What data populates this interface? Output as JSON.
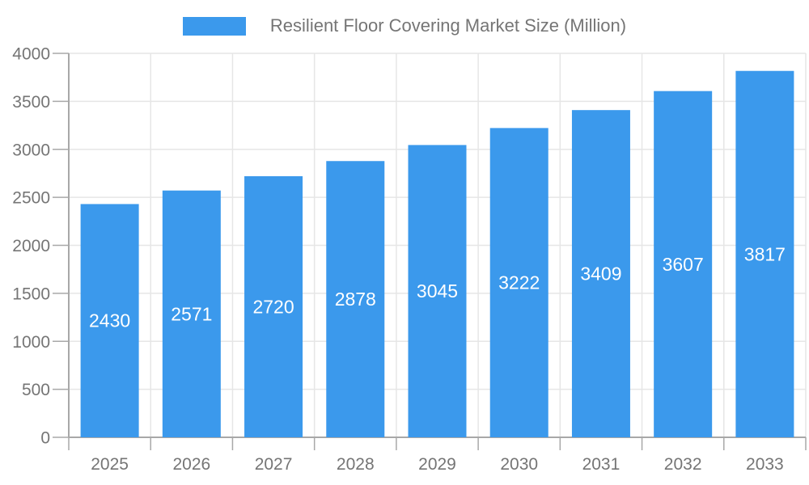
{
  "chart_data": {
    "type": "bar",
    "title": "Resilient Floor Covering Market Size (Million)",
    "categories": [
      "2025",
      "2026",
      "2027",
      "2028",
      "2029",
      "2030",
      "2031",
      "2032",
      "2033"
    ],
    "values": [
      2430,
      2571,
      2720,
      2878,
      3045,
      3222,
      3409,
      3607,
      3817
    ],
    "xlabel": "",
    "ylabel": "",
    "ylim": [
      0,
      4000
    ],
    "yticks": [
      0,
      500,
      1000,
      1500,
      2000,
      2500,
      3000,
      3500,
      4000
    ],
    "grid": true,
    "legend_position": "top-center",
    "bar_label_position": "inside-center",
    "colors": {
      "bar": "#3b99ec",
      "bar_label": "#ffffff",
      "axis_text": "#757575",
      "grid_line": "#e6e6e6",
      "axis_line": "#a8a8a8",
      "background": "#ffffff"
    }
  }
}
